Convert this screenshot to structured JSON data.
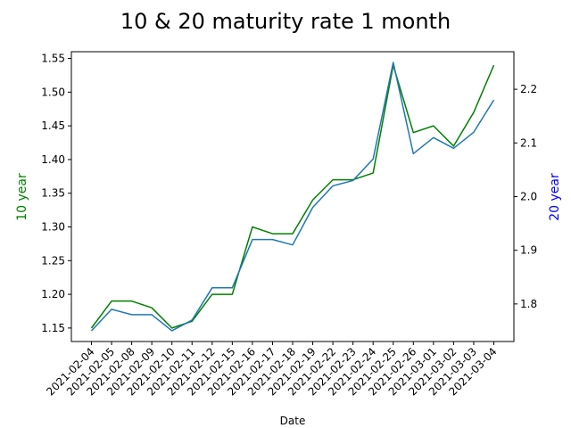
{
  "chart_data": {
    "type": "line",
    "title": "10 & 20 maturity rate 1 month",
    "xlabel": "Date",
    "categories": [
      "2021-02-04",
      "2021-02-05",
      "2021-02-08",
      "2021-02-09",
      "2021-02-10",
      "2021-02-11",
      "2021-02-12",
      "2021-02-15",
      "2021-02-16",
      "2021-02-17",
      "2021-02-18",
      "2021-02-19",
      "2021-02-22",
      "2021-02-23",
      "2021-02-24",
      "2021-02-25",
      "2021-02-26",
      "2021-03-01",
      "2021-03-02",
      "2021-03-03",
      "2021-03-04"
    ],
    "left_axis": {
      "label": "10 year",
      "color": "#008000",
      "ylim": [
        1.13,
        1.56
      ],
      "ticks": [
        "1.15",
        "1.20",
        "1.25",
        "1.30",
        "1.35",
        "1.40",
        "1.45",
        "1.50",
        "1.55"
      ]
    },
    "right_axis": {
      "label": "20 year",
      "color": "#0000ff",
      "ylim": [
        1.73,
        2.27
      ],
      "ticks": [
        "1.8",
        "1.9",
        "2.0",
        "2.1",
        "2.2"
      ]
    },
    "series": [
      {
        "axis": "left",
        "color": "#008000",
        "values": [
          1.15,
          1.19,
          1.19,
          1.18,
          1.15,
          1.16,
          1.2,
          1.2,
          1.3,
          1.29,
          1.29,
          1.34,
          1.37,
          1.37,
          1.38,
          1.54,
          1.44,
          1.45,
          1.42,
          1.47,
          1.54
        ]
      },
      {
        "axis": "right",
        "color": "#1f77b4",
        "values": [
          1.75,
          1.79,
          1.78,
          1.78,
          1.75,
          1.77,
          1.83,
          1.83,
          1.92,
          1.92,
          1.91,
          1.98,
          2.02,
          2.03,
          2.07,
          2.25,
          2.08,
          2.11,
          2.09,
          2.12,
          2.18
        ]
      }
    ],
    "grid": false,
    "legend": "none"
  }
}
